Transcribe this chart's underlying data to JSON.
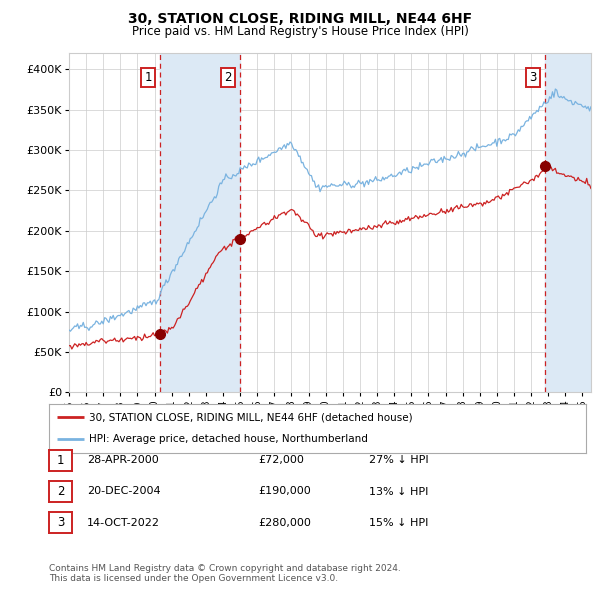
{
  "title": "30, STATION CLOSE, RIDING MILL, NE44 6HF",
  "subtitle": "Price paid vs. HM Land Registry's House Price Index (HPI)",
  "xlim_start": 1995.0,
  "xlim_end": 2025.5,
  "ylim": [
    0,
    420000
  ],
  "yticks": [
    0,
    50000,
    100000,
    150000,
    200000,
    250000,
    300000,
    350000,
    400000
  ],
  "ytick_labels": [
    "£0",
    "£50K",
    "£100K",
    "£150K",
    "£200K",
    "£250K",
    "£300K",
    "£350K",
    "£400K"
  ],
  "hpi_color": "#7ab3e0",
  "property_color": "#cc2222",
  "sale_marker_color": "#880000",
  "sale1_x": 2000.32,
  "sale1_y": 72000,
  "sale2_x": 2004.97,
  "sale2_y": 190000,
  "sale3_x": 2022.79,
  "sale3_y": 280000,
  "vline_color": "#cc2222",
  "shade_color": "#dce9f5",
  "legend_label_property": "30, STATION CLOSE, RIDING MILL, NE44 6HF (detached house)",
  "legend_label_hpi": "HPI: Average price, detached house, Northumberland",
  "table_rows": [
    [
      "1",
      "28-APR-2000",
      "£72,000",
      "27% ↓ HPI"
    ],
    [
      "2",
      "20-DEC-2004",
      "£190,000",
      "13% ↓ HPI"
    ],
    [
      "3",
      "14-OCT-2022",
      "£280,000",
      "15% ↓ HPI"
    ]
  ],
  "footer": "Contains HM Land Registry data © Crown copyright and database right 2024.\nThis data is licensed under the Open Government Licence v3.0.",
  "background_color": "#ffffff",
  "grid_color": "#cccccc"
}
